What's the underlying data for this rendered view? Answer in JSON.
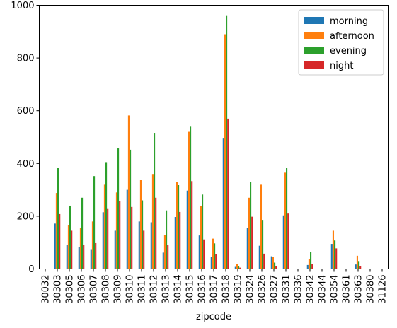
{
  "chart_data": {
    "type": "bar",
    "xlabel": "zipcode",
    "ylabel": "",
    "ylim": [
      0,
      1000
    ],
    "yticks": [
      0,
      200,
      400,
      600,
      800,
      1000
    ],
    "legend_position": "top-right",
    "grid": false,
    "categories": [
      "30032",
      "30303",
      "30305",
      "30306",
      "30307",
      "30308",
      "30309",
      "30310",
      "30311",
      "30312",
      "30313",
      "30314",
      "30315",
      "30316",
      "30317",
      "30318",
      "30319",
      "30324",
      "30326",
      "30327",
      "30331",
      "30336",
      "30342",
      "30344",
      "30354",
      "30361",
      "30363",
      "30380",
      "31126"
    ],
    "series": [
      {
        "name": "morning",
        "color": "#1f77b4",
        "values": [
          0,
          172,
          90,
          82,
          75,
          215,
          145,
          300,
          180,
          177,
          62,
          197,
          297,
          127,
          45,
          497,
          8,
          155,
          88,
          48,
          203,
          0,
          15,
          0,
          95,
          0,
          17,
          0,
          0
        ]
      },
      {
        "name": "afternoon",
        "color": "#ff7f0e",
        "values": [
          0,
          288,
          165,
          155,
          180,
          322,
          290,
          582,
          337,
          360,
          128,
          330,
          520,
          240,
          115,
          890,
          18,
          270,
          322,
          45,
          365,
          0,
          38,
          0,
          145,
          0,
          50,
          0,
          0
        ]
      },
      {
        "name": "evening",
        "color": "#2ca02c",
        "values": [
          0,
          382,
          240,
          270,
          352,
          405,
          457,
          452,
          260,
          516,
          222,
          318,
          542,
          282,
          97,
          962,
          10,
          330,
          186,
          24,
          382,
          0,
          63,
          0,
          108,
          0,
          30,
          0,
          0
        ]
      },
      {
        "name": "night",
        "color": "#d62728",
        "values": [
          0,
          208,
          145,
          90,
          98,
          230,
          256,
          235,
          145,
          270,
          90,
          216,
          333,
          112,
          55,
          570,
          5,
          198,
          58,
          10,
          210,
          0,
          18,
          0,
          78,
          0,
          10,
          0,
          0
        ]
      }
    ]
  }
}
